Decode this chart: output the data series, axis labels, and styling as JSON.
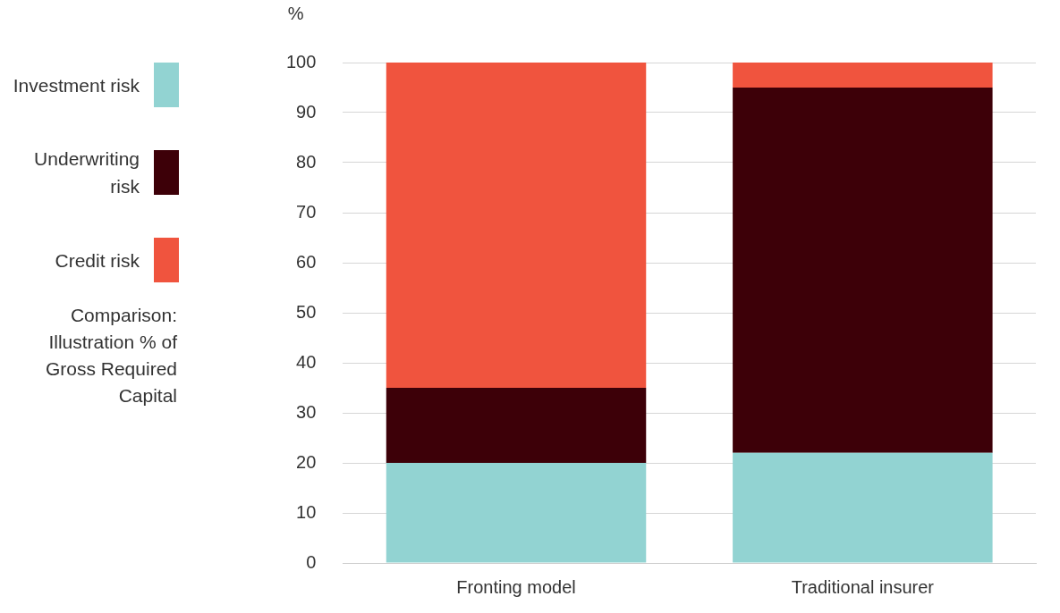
{
  "chart_data": {
    "type": "bar",
    "title": "Comparison: Illustration % of Gross Required Capital",
    "ylabel": "%",
    "categories": [
      "Fronting model",
      "Traditional insurer"
    ],
    "series": [
      {
        "name": "Investment risk",
        "color": "#92d3d2",
        "values": [
          20,
          22
        ]
      },
      {
        "name": "Underwriting risk",
        "color": "#3d0008",
        "values": [
          15,
          73
        ]
      },
      {
        "name": "Credit risk",
        "color": "#f0543e",
        "values": [
          65,
          5
        ]
      }
    ],
    "stacked": true,
    "ylim": [
      0,
      100
    ],
    "yticks": [
      0,
      10,
      20,
      30,
      40,
      50,
      60,
      70,
      80,
      90,
      100
    ],
    "grid": "y",
    "legend": "left"
  }
}
